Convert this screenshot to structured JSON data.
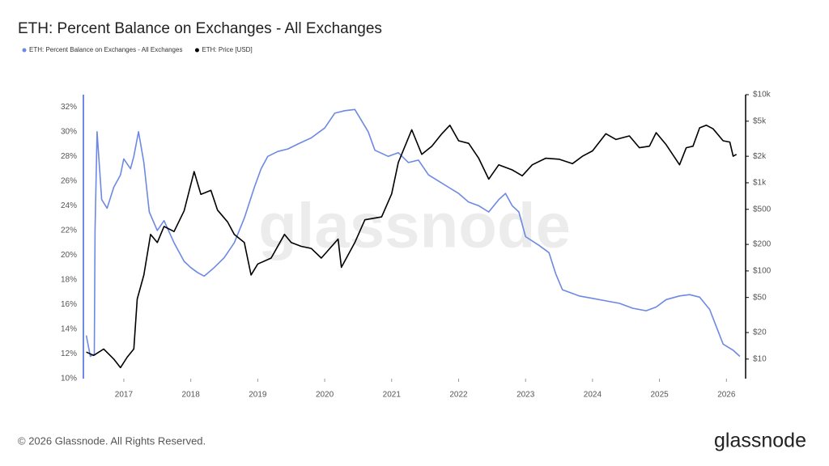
{
  "chart_data": {
    "type": "line",
    "title": "ETH: Percent Balance on Exchanges - All Exchanges",
    "watermark": "glassnode",
    "copyright": "© 2026 Glassnode. All Rights Reserved.",
    "logo": "glassnode",
    "xlim": [
      2016.36,
      2026.25
    ],
    "xticks": [
      2017,
      2018,
      2019,
      2020,
      2021,
      2022,
      2023,
      2024,
      2025,
      2026
    ],
    "ylim": [
      10,
      33
    ],
    "yticks": [
      {
        "value": 10,
        "label": "10%"
      },
      {
        "value": 12,
        "label": "12%"
      },
      {
        "value": 14,
        "label": "14%"
      },
      {
        "value": 16,
        "label": "16%"
      },
      {
        "value": 18,
        "label": "18%"
      },
      {
        "value": 20,
        "label": "20%"
      },
      {
        "value": 22,
        "label": "22%"
      },
      {
        "value": 24,
        "label": "24%"
      },
      {
        "value": 26,
        "label": "26%"
      },
      {
        "value": 28,
        "label": "28%"
      },
      {
        "value": 30,
        "label": "30%"
      },
      {
        "value": 32,
        "label": "32%"
      }
    ],
    "y2lim": [
      6,
      10000
    ],
    "y2log": true,
    "y2ticks": [
      {
        "value": 10,
        "label": "$10"
      },
      {
        "value": 20,
        "label": "$20"
      },
      {
        "value": 50,
        "label": "$50"
      },
      {
        "value": 100,
        "label": "$100"
      },
      {
        "value": 200,
        "label": "$200"
      },
      {
        "value": 500,
        "label": "$500"
      },
      {
        "value": 1000,
        "label": "$1k"
      },
      {
        "value": 2000,
        "label": "$2k"
      },
      {
        "value": 5000,
        "label": "$5k"
      },
      {
        "value": 10000,
        "label": "$10k"
      }
    ],
    "series": [
      {
        "name": "ETH: Percent Balance on Exchanges - All Exchanges",
        "color": "#6d89e3",
        "x": [
          2016.44,
          2016.5,
          2016.56,
          2016.57,
          2016.6,
          2016.67,
          2016.75,
          2016.85,
          2016.95,
          2017.0,
          2017.1,
          2017.15,
          2017.22,
          2017.3,
          2017.38,
          2017.5,
          2017.6,
          2017.75,
          2017.9,
          2018.0,
          2018.1,
          2018.2,
          2018.35,
          2018.5,
          2018.65,
          2018.8,
          2018.95,
          2019.05,
          2019.15,
          2019.3,
          2019.45,
          2019.6,
          2019.8,
          2020.0,
          2020.15,
          2020.3,
          2020.45,
          2020.65,
          2020.75,
          2020.95,
          2021.1,
          2021.25,
          2021.4,
          2021.55,
          2021.7,
          2021.85,
          2022.0,
          2022.15,
          2022.3,
          2022.45,
          2022.6,
          2022.7,
          2022.8,
          2022.9,
          2023.0,
          2023.2,
          2023.35,
          2023.45,
          2023.55,
          2023.8,
          2024.0,
          2024.2,
          2024.4,
          2024.6,
          2024.8,
          2024.95,
          2025.1,
          2025.3,
          2025.45,
          2025.6,
          2025.75,
          2025.85,
          2025.95,
          2026.1,
          2026.2
        ],
        "values": [
          13.5,
          11.8,
          12,
          22,
          30,
          24.5,
          23.8,
          25.5,
          26.5,
          27.8,
          27,
          28,
          30,
          27.5,
          23.5,
          22,
          22.8,
          21,
          19.5,
          19,
          18.6,
          18.3,
          19,
          19.8,
          21,
          23,
          25.5,
          27,
          28,
          28.4,
          28.6,
          29,
          29.5,
          30.3,
          31.5,
          31.7,
          31.8,
          30,
          28.5,
          28,
          28.3,
          27.5,
          27.7,
          26.5,
          26,
          25.5,
          25,
          24.3,
          24,
          23.5,
          24.5,
          25,
          24,
          23.5,
          21.5,
          20.8,
          20.2,
          18.5,
          17.2,
          16.7,
          16.5,
          16.3,
          16.1,
          15.7,
          15.5,
          15.8,
          16.4,
          16.7,
          16.8,
          16.6,
          15.6,
          14.2,
          12.8,
          12.3,
          11.8
        ]
      },
      {
        "name": "ETH: Price [USD]",
        "color": "#000000",
        "axis": "y2",
        "x": [
          2016.44,
          2016.55,
          2016.7,
          2016.85,
          2016.95,
          2017.05,
          2017.15,
          2017.2,
          2017.3,
          2017.4,
          2017.5,
          2017.6,
          2017.75,
          2017.9,
          2018.05,
          2018.15,
          2018.3,
          2018.4,
          2018.55,
          2018.65,
          2018.8,
          2018.9,
          2019.0,
          2019.2,
          2019.4,
          2019.5,
          2019.65,
          2019.8,
          2019.95,
          2020.2,
          2020.25,
          2020.45,
          2020.6,
          2020.85,
          2021.0,
          2021.1,
          2021.3,
          2021.45,
          2021.6,
          2021.75,
          2021.87,
          2022.0,
          2022.15,
          2022.3,
          2022.45,
          2022.6,
          2022.8,
          2022.95,
          2023.1,
          2023.3,
          2023.5,
          2023.7,
          2023.85,
          2024.0,
          2024.2,
          2024.35,
          2024.55,
          2024.7,
          2024.85,
          2024.95,
          2025.1,
          2025.3,
          2025.4,
          2025.5,
          2025.6,
          2025.7,
          2025.8,
          2025.95,
          2026.05,
          2026.1,
          2026.15
        ],
        "values": [
          12,
          11,
          13,
          10,
          8,
          10.5,
          13,
          48,
          90,
          260,
          210,
          320,
          280,
          480,
          1340,
          740,
          820,
          490,
          360,
          260,
          210,
          90,
          120,
          140,
          260,
          210,
          190,
          180,
          140,
          230,
          110,
          210,
          380,
          410,
          750,
          1700,
          4000,
          2100,
          2600,
          3600,
          4500,
          3000,
          2800,
          1900,
          1100,
          1600,
          1400,
          1200,
          1600,
          1900,
          1850,
          1650,
          2000,
          2300,
          3600,
          3100,
          3400,
          2500,
          2600,
          3700,
          2700,
          1600,
          2500,
          2600,
          4200,
          4500,
          4100,
          3000,
          2900,
          2000,
          2100
        ]
      }
    ]
  }
}
